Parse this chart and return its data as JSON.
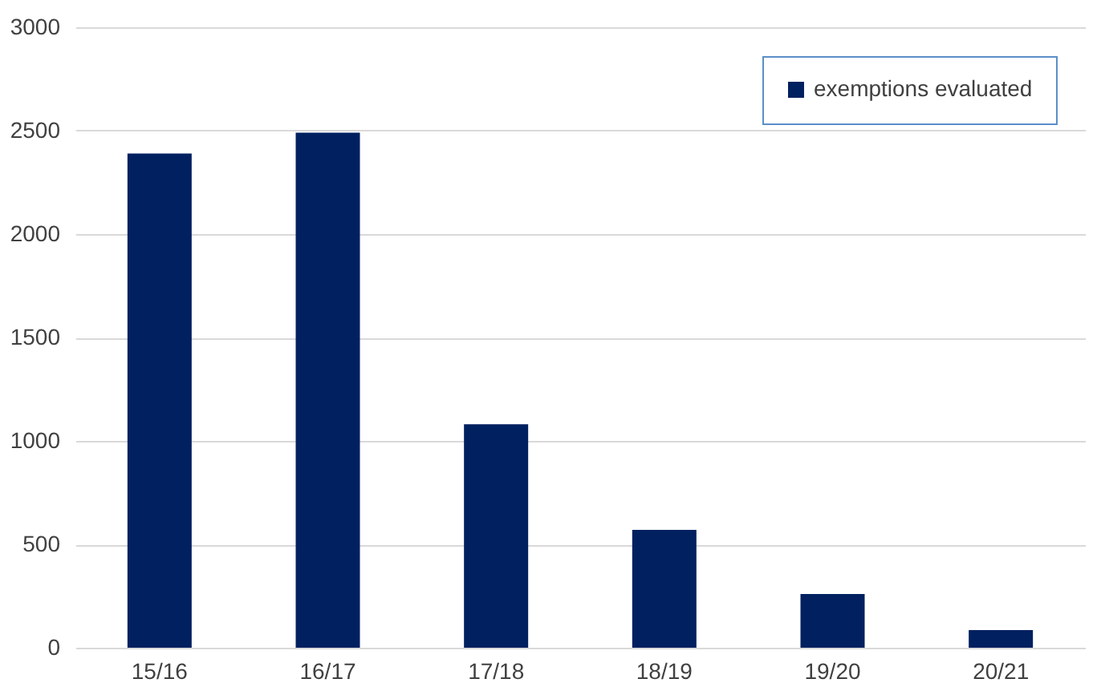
{
  "chart_data": {
    "type": "bar",
    "categories": [
      "15/16",
      "16/17",
      "17/18",
      "18/19",
      "19/20",
      "20/21"
    ],
    "series": [
      {
        "name": "exemptions evaluated",
        "color": "#002060",
        "values": [
          2390,
          2490,
          1080,
          570,
          260,
          85
        ]
      }
    ],
    "ylim": [
      0,
      3000
    ],
    "yticks": [
      0,
      500,
      1000,
      1500,
      2000,
      2500,
      3000
    ],
    "grid": "y",
    "legend": "top right"
  }
}
